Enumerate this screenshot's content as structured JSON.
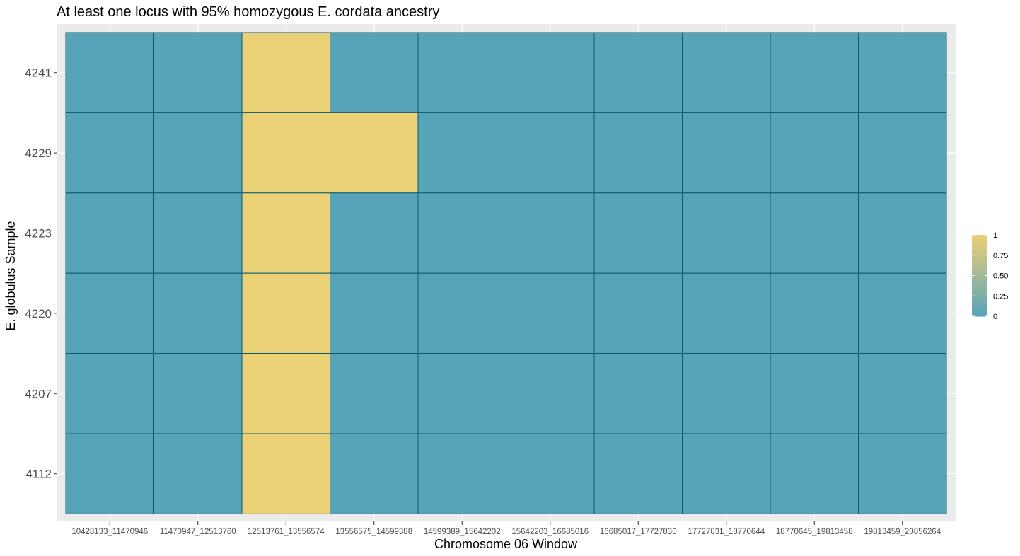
{
  "chart_data": {
    "type": "heatmap",
    "title": "At least one locus with 95% homozygous E. cordata ancestry",
    "xlabel": "Chromosome 06 Window",
    "ylabel": "E. globulus Sample",
    "x_categories": [
      "10428133_11470946",
      "11470947_12513760",
      "12513761_13556574",
      "13556575_14599388",
      "14599389_15642202",
      "15642203_16685016",
      "16685017_17727830",
      "17727831_18770644",
      "18770645_19813458",
      "19813459_20856264"
    ],
    "y_categories": [
      "4241",
      "4229",
      "4223",
      "4220",
      "4207",
      "4112"
    ],
    "values": [
      [
        0,
        0,
        1,
        0,
        0,
        0,
        0,
        0,
        0,
        0
      ],
      [
        0,
        0,
        1,
        1,
        0,
        0,
        0,
        0,
        0,
        0
      ],
      [
        0,
        0,
        1,
        0,
        0,
        0,
        0,
        0,
        0,
        0
      ],
      [
        0,
        0,
        1,
        0,
        0,
        0,
        0,
        0,
        0,
        0
      ],
      [
        0,
        0,
        1,
        0,
        0,
        0,
        0,
        0,
        0,
        0
      ],
      [
        0,
        0,
        1,
        0,
        0,
        0,
        0,
        0,
        0,
        0
      ]
    ],
    "legend": {
      "position": "right",
      "breaks": [
        "1",
        "0.75",
        "0.50",
        "0.25",
        "0"
      ],
      "low_color": "#57a4b9",
      "high_color": "#ebd176"
    },
    "tile_border_color": "#0b5a6a",
    "panel_background": "#ebebeb",
    "grid": true
  }
}
